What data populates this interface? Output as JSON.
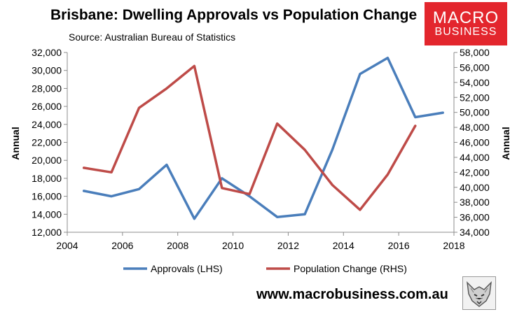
{
  "header": {
    "title": "Brisbane: Dwelling Approvals vs Population Change",
    "source": "Source: Australian Bureau of Statistics"
  },
  "logo": {
    "line1": "MACRO",
    "line2": "BUSINESS",
    "color": "#e3262d"
  },
  "footer": {
    "site": "www.macrobusiness.com.au",
    "badge_icon": "wolf-icon"
  },
  "chart_data": {
    "type": "line",
    "title": "Brisbane: Dwelling Approvals vs Population Change",
    "xlabel": "",
    "xlim": [
      2004,
      2018
    ],
    "x_ticks": [
      2004,
      2006,
      2008,
      2010,
      2012,
      2014,
      2016,
      2018
    ],
    "y_left": {
      "label": "Annual",
      "lim": [
        12000,
        32000
      ],
      "ticks": [
        12000,
        14000,
        16000,
        18000,
        20000,
        22000,
        24000,
        26000,
        28000,
        30000,
        32000
      ],
      "tick_labels": [
        "12,000",
        "14,000",
        "16,000",
        "18,000",
        "20,000",
        "22,000",
        "24,000",
        "26,000",
        "28,000",
        "30,000",
        "32,000"
      ]
    },
    "y_right": {
      "label": "Annual",
      "lim": [
        34000,
        58000
      ],
      "ticks": [
        34000,
        36000,
        38000,
        40000,
        42000,
        44000,
        46000,
        48000,
        50000,
        52000,
        54000,
        56000,
        58000
      ],
      "tick_labels": [
        "34,000",
        "36,000",
        "38,000",
        "40,000",
        "42,000",
        "44,000",
        "46,000",
        "48,000",
        "50,000",
        "52,000",
        "54,000",
        "56,000",
        "58,000"
      ]
    },
    "grid": false,
    "legend_position": "bottom",
    "series": [
      {
        "name": "Approvals (LHS)",
        "axis": "left",
        "color": "#4a7ebb",
        "x": [
          2004.6,
          2005.6,
          2006.6,
          2007.6,
          2008.6,
          2009.6,
          2010.6,
          2011.6,
          2012.6,
          2013.6,
          2014.6,
          2015.6,
          2016.6,
          2017.6
        ],
        "values": [
          16600,
          16000,
          16800,
          19500,
          13500,
          18000,
          16000,
          13700,
          14000,
          21200,
          29600,
          31400,
          24800,
          25300
        ]
      },
      {
        "name": "Population Change (RHS)",
        "axis": "right",
        "color": "#be4b48",
        "x": [
          2004.6,
          2005.6,
          2006.6,
          2007.6,
          2008.6,
          2009.6,
          2010.6,
          2011.6,
          2012.6,
          2013.6,
          2014.6,
          2015.6,
          2016.6
        ],
        "values": [
          42600,
          42000,
          50600,
          53200,
          56200,
          39900,
          39100,
          48500,
          45000,
          40300,
          37000,
          41700,
          48200
        ]
      }
    ]
  }
}
